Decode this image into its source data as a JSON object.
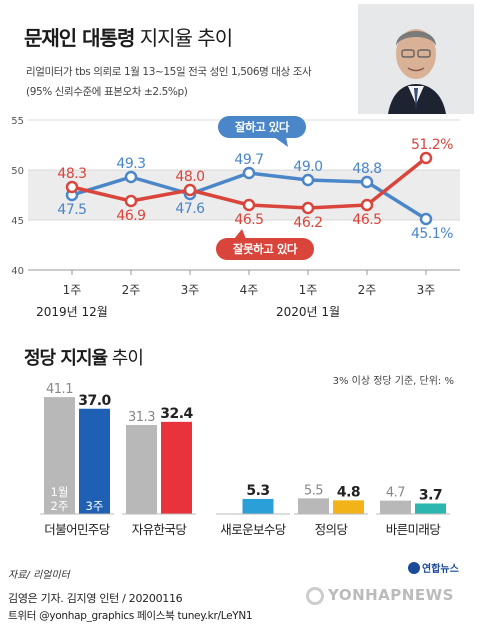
{
  "header": {
    "title_bold": "문재인 대통령",
    "title_light": " 지지율 추이",
    "subtitle_line1": "리얼미터가 tbs 의뢰로 1월 13~15일 전국 성인 1,506명 대상 조사",
    "subtitle_line2": "(95% 신뢰수준에 표본오차 ±2.5%p)"
  },
  "chart_data": [
    {
      "type": "line",
      "title": "문재인 대통령 지지율 추이",
      "ylim": [
        40,
        55
      ],
      "yticks": [
        40,
        45,
        50,
        55
      ],
      "categories": [
        "1주",
        "2주",
        "3주",
        "4주",
        "1주",
        "2주",
        "3주"
      ],
      "month_labels": [
        "2019년 12월",
        "2020년 1월"
      ],
      "series": [
        {
          "name": "잘하고 있다",
          "color": "#4a86c8",
          "values": [
            47.5,
            49.3,
            47.6,
            49.7,
            49.0,
            48.8,
            45.1
          ],
          "labels": [
            "47.5",
            "49.3",
            "47.6",
            "49.7",
            "49.0",
            "48.8",
            "45.1%"
          ]
        },
        {
          "name": "잘못하고 있다",
          "color": "#d9453b",
          "values": [
            48.3,
            46.9,
            48.0,
            46.5,
            46.2,
            46.5,
            51.2
          ],
          "labels": [
            "48.3",
            "46.9",
            "48.0",
            "46.5",
            "46.2",
            "46.5",
            "51.2%"
          ]
        }
      ]
    },
    {
      "type": "bar",
      "title": "정당 지지율 추이",
      "note": "3% 이상 정당 기준, 단위: %",
      "categories": [
        "더불어민주당",
        "자유한국당",
        "새로운보수당",
        "정의당",
        "바른미래당"
      ],
      "series": [
        {
          "name": "1월 2주",
          "values": [
            41.1,
            31.3,
            null,
            5.5,
            4.7
          ],
          "labels": [
            "41.1",
            "31.3",
            "",
            "5.5",
            "4.7"
          ]
        },
        {
          "name": "3주",
          "values": [
            37.0,
            32.4,
            5.3,
            4.8,
            3.7
          ],
          "labels": [
            "37.0",
            "32.4",
            "5.3",
            "4.8",
            "3.7"
          ]
        }
      ],
      "series_inbar_labels": [
        "1월\n2주",
        "3주"
      ],
      "party_colors": [
        "#1f5fb4",
        "#e8333c",
        "#2b9fd8",
        "#f2b318",
        "#2bb7b0"
      ],
      "prev_color": "#b8b8b8",
      "ylim": [
        0,
        45
      ]
    }
  ],
  "source": "자료/ 리얼미터",
  "credit_line1": "김영은 기자. 김지영 인턴 / 20200116",
  "credit_line2": "트위터 @yonhap_graphics  페이스북 tuney.kr/LeYN1",
  "logo_small": "연합뉴스",
  "watermark": "YONHAPNEWS"
}
